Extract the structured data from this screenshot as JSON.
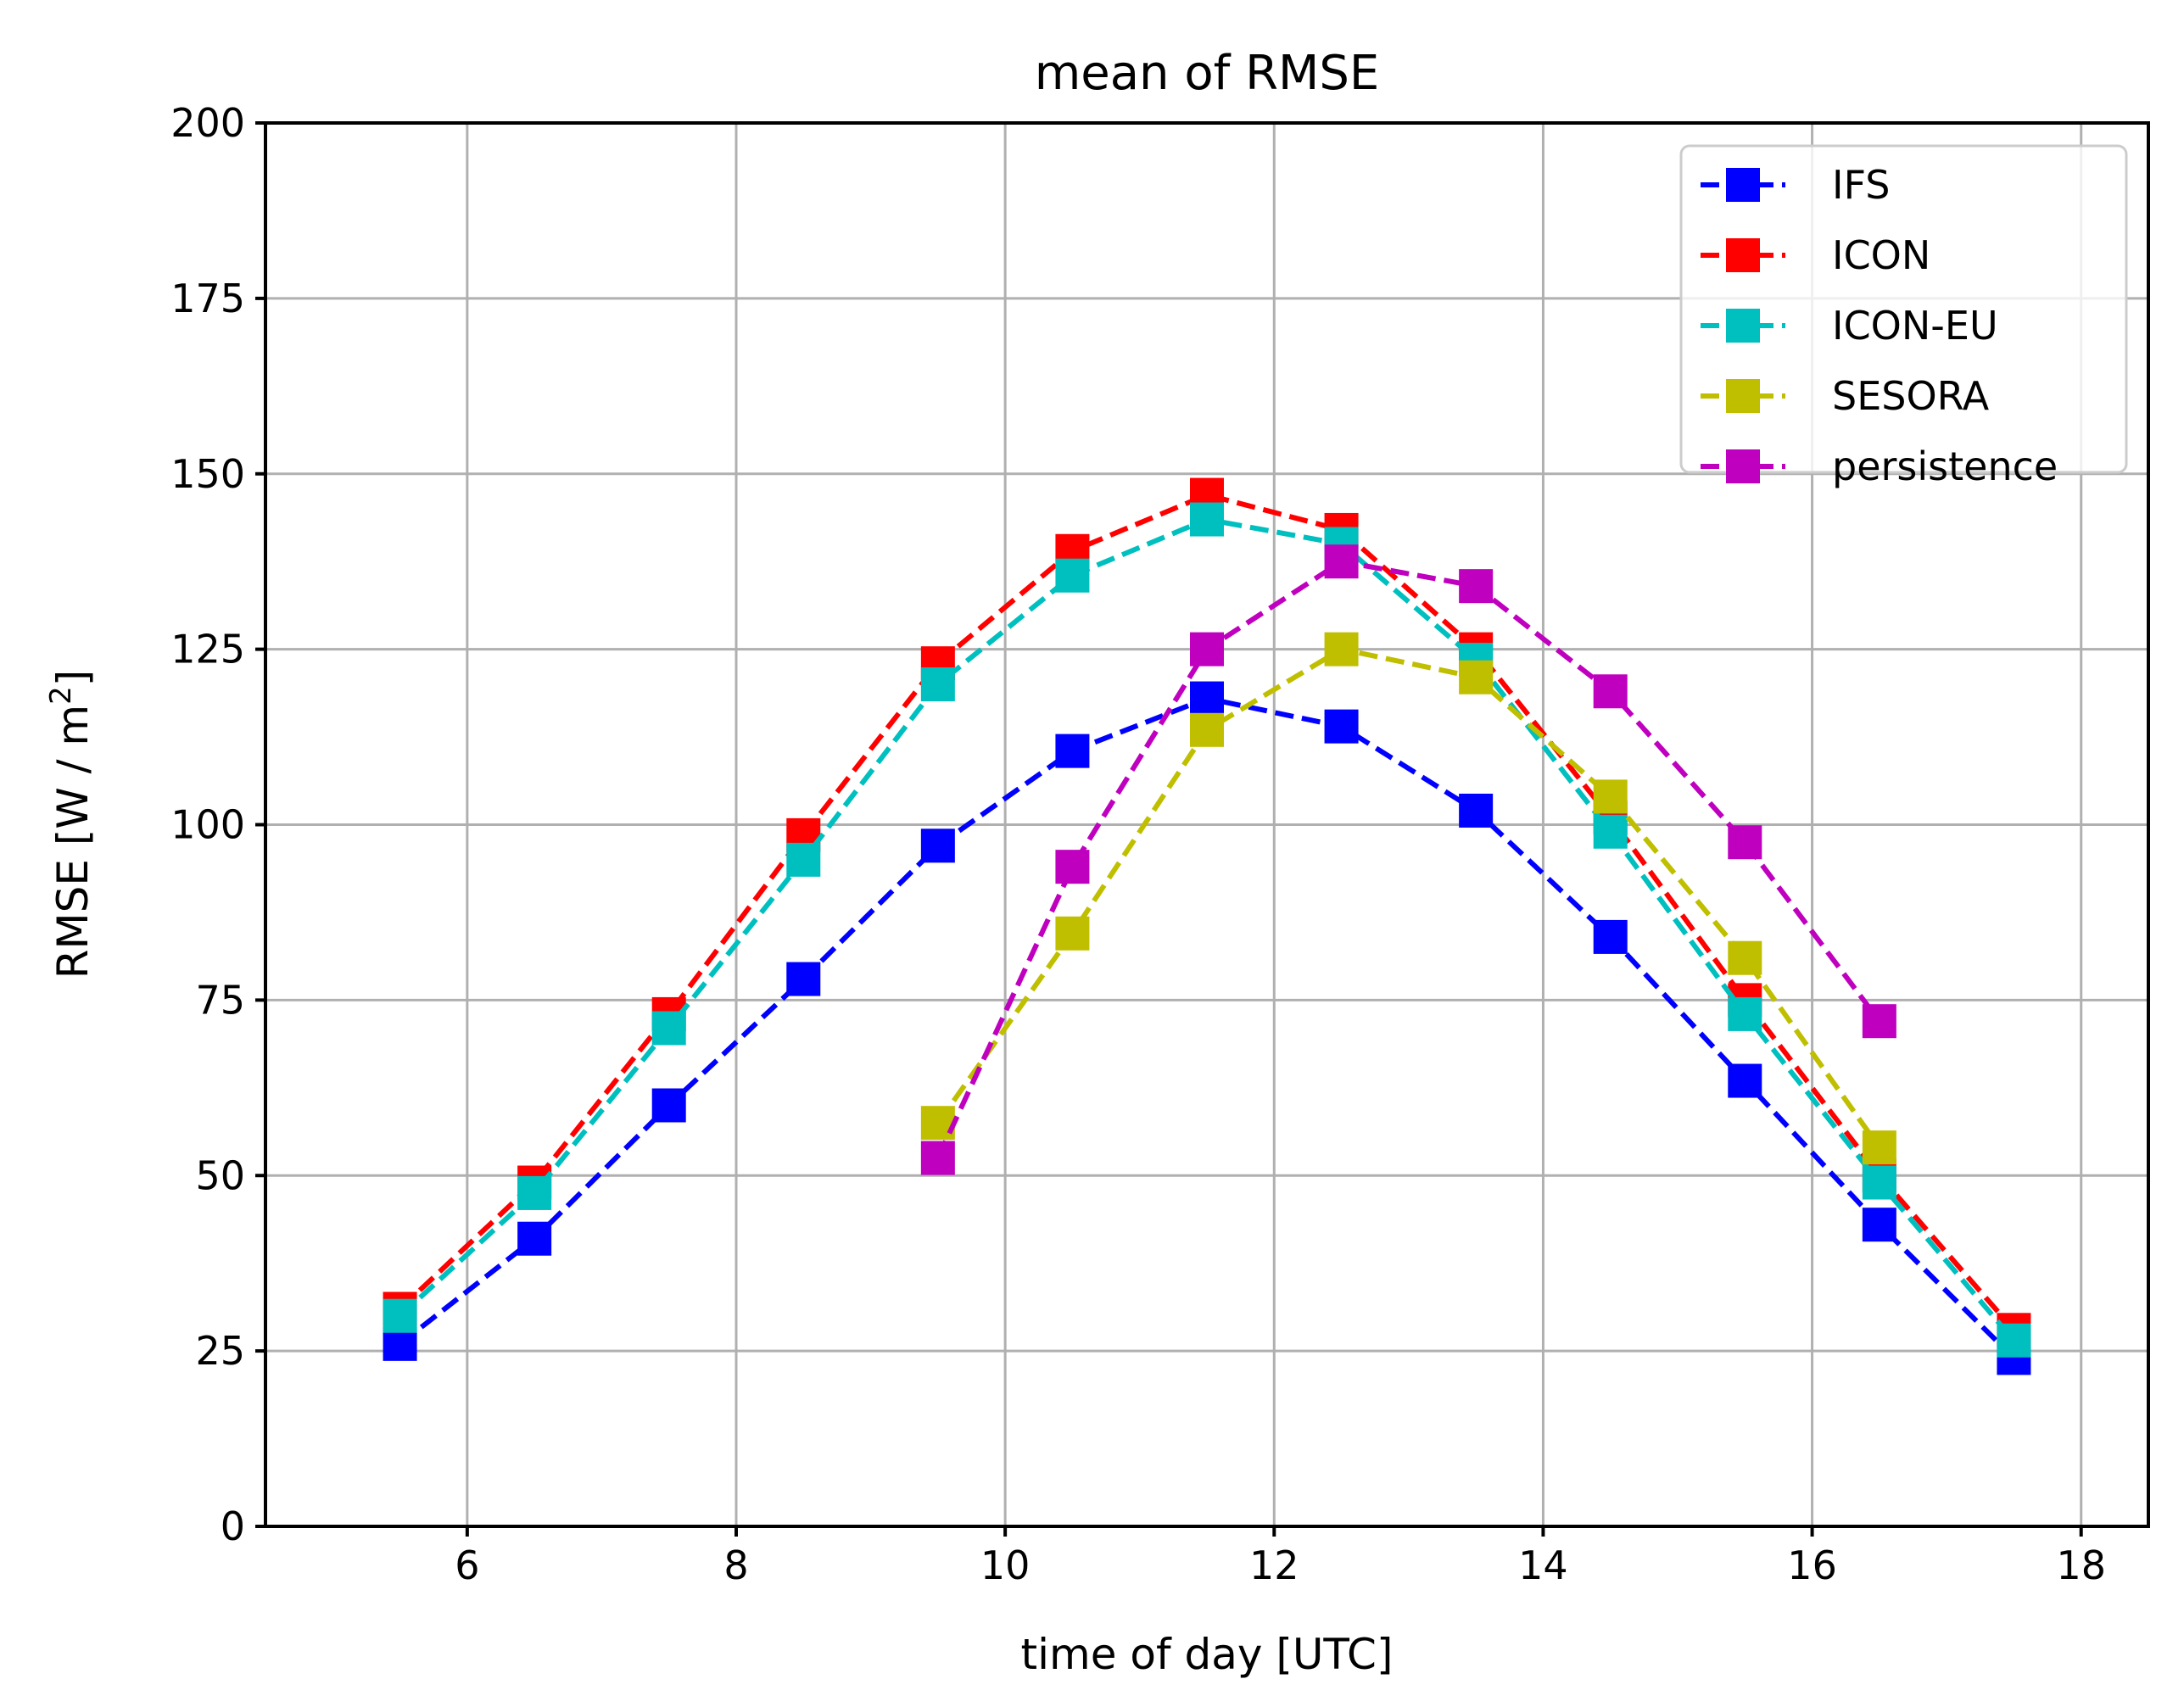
{
  "chart_data": {
    "type": "line",
    "title": "mean of RMSE",
    "xlabel": "time of day [UTC]",
    "ylabel_main": "RMSE [W / m",
    "ylabel_sup": "2",
    "ylabel_close": "]",
    "xlim": [
      4.5,
      18.5
    ],
    "ylim": [
      0,
      200
    ],
    "xticks": [
      6,
      8,
      10,
      12,
      14,
      16,
      18
    ],
    "yticks": [
      0,
      25,
      50,
      75,
      100,
      125,
      150,
      175,
      200
    ],
    "grid": true,
    "legend_position": "top-right",
    "series": [
      {
        "name": "IFS",
        "color": "#0000ff",
        "x": [
          5.5,
          6.5,
          7.5,
          8.5,
          9.5,
          10.5,
          11.5,
          12.5,
          13.5,
          14.5,
          15.5,
          16.5,
          17.5
        ],
        "y": [
          26,
          41,
          60,
          78,
          97,
          110.5,
          118,
          114,
          102,
          84,
          63.5,
          43,
          24
        ]
      },
      {
        "name": "ICON",
        "color": "#ff0000",
        "x": [
          5.5,
          6.5,
          7.5,
          8.5,
          9.5,
          10.5,
          11.5,
          12.5,
          13.5,
          14.5,
          15.5,
          16.5,
          17.5
        ],
        "y": [
          31,
          49,
          73,
          98.5,
          123,
          139,
          147,
          142,
          125,
          101,
          75,
          50,
          28
        ]
      },
      {
        "name": "ICON-EU",
        "color": "#00bfbf",
        "x": [
          5.5,
          6.5,
          7.5,
          8.5,
          9.5,
          10.5,
          11.5,
          12.5,
          13.5,
          14.5,
          15.5,
          16.5,
          17.5
        ],
        "y": [
          30,
          47.5,
          71,
          95,
          120,
          135.5,
          143.5,
          140,
          123.5,
          99,
          73,
          49,
          26.5
        ]
      },
      {
        "name": "SESORA",
        "color": "#bfbf00",
        "x": [
          9.5,
          10.5,
          11.5,
          12.5,
          13.5,
          14.5,
          15.5,
          16.5
        ],
        "y": [
          57.5,
          84.5,
          113.5,
          125,
          121,
          104,
          81,
          54
        ]
      },
      {
        "name": "persistence",
        "color": "#bf00bf",
        "x": [
          9.5,
          10.5,
          11.5,
          12.5,
          13.5,
          14.5,
          15.5,
          16.5
        ],
        "y": [
          52.5,
          94,
          125,
          137.5,
          134,
          119,
          97.5,
          72
        ]
      }
    ]
  }
}
